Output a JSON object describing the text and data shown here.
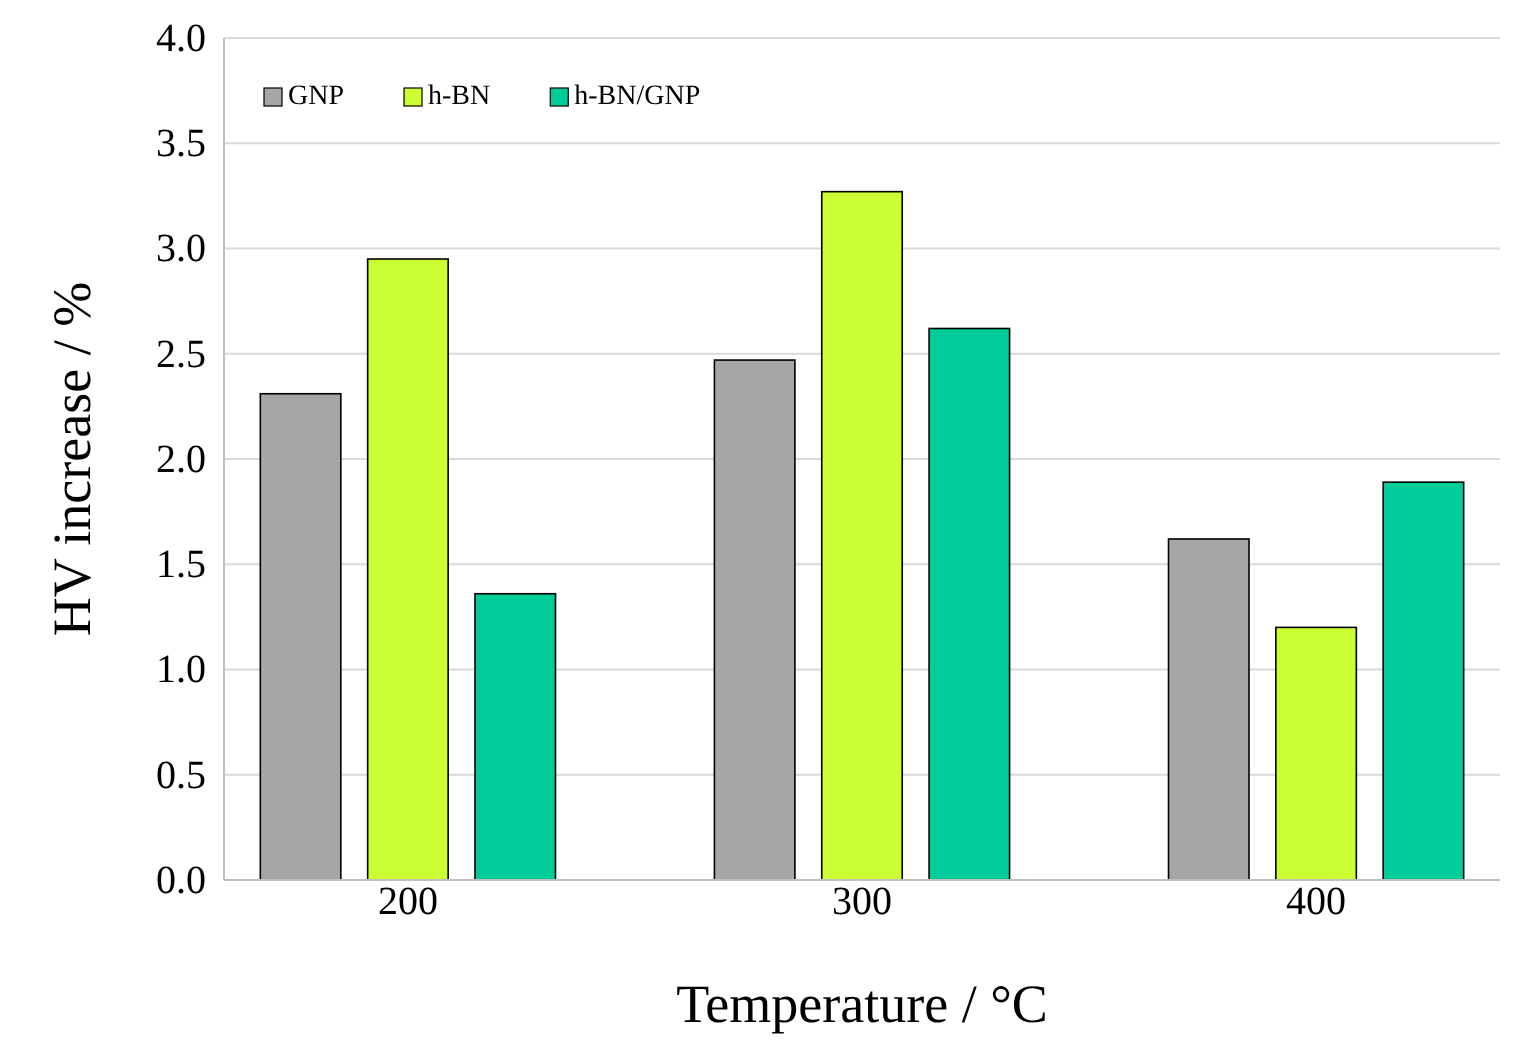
{
  "chart_data": {
    "type": "bar",
    "xlabel": "Temperature / °C",
    "ylabel": "HV increase / %",
    "categories": [
      "200",
      "300",
      "400"
    ],
    "series": [
      {
        "name": "GNP",
        "color": "#a6a6a6",
        "values": [
          2.31,
          2.47,
          1.62
        ]
      },
      {
        "name": "h-BN",
        "color": "#ccff33",
        "values": [
          2.95,
          3.27,
          1.2
        ]
      },
      {
        "name": "h-BN/GNP",
        "color": "#00cc99",
        "values": [
          1.36,
          2.62,
          1.89
        ]
      }
    ],
    "ylim": [
      0,
      4
    ],
    "yticks": [
      {
        "value": 0,
        "label": "0.0"
      },
      {
        "value": 0.5,
        "label": "0.5"
      },
      {
        "value": 1,
        "label": "1.0"
      },
      {
        "value": 1.5,
        "label": "1.5"
      },
      {
        "value": 2,
        "label": "2.0"
      },
      {
        "value": 2.5,
        "label": "2.5"
      },
      {
        "value": 3,
        "label": "3.0"
      },
      {
        "value": 3.5,
        "label": "3.5"
      },
      {
        "value": 4,
        "label": "4.0"
      }
    ],
    "grid": "y",
    "legend": "top left"
  }
}
